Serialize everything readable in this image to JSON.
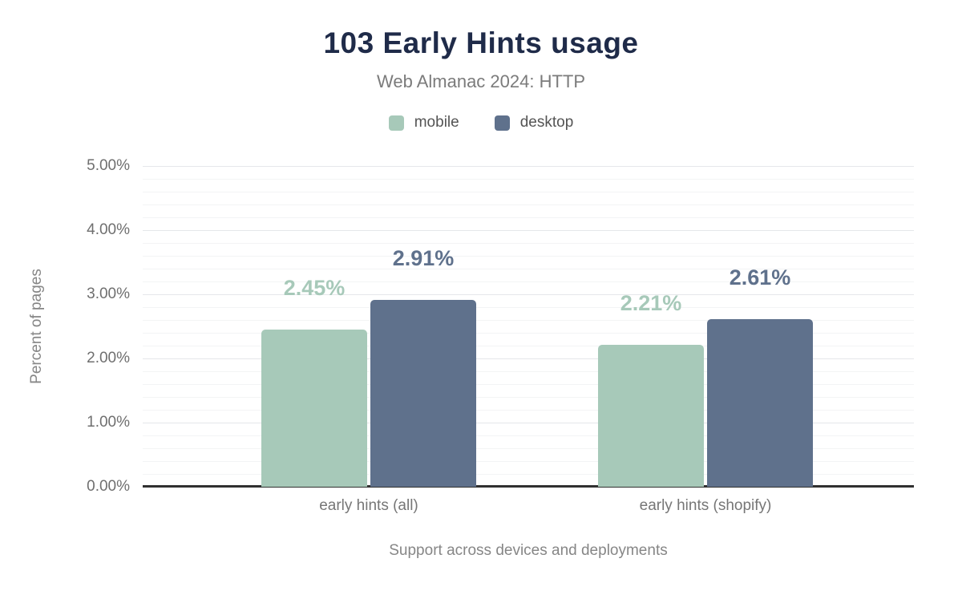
{
  "chart_data": {
    "type": "bar",
    "title": "103 Early Hints usage",
    "subtitle": "Web Almanac 2024: HTTP",
    "categories": [
      "early hints (all)",
      "early hints (shopify)"
    ],
    "series": [
      {
        "name": "mobile",
        "color": "#a7c9b9",
        "values": [
          2.45,
          2.21
        ],
        "data_labels": [
          "2.45%",
          "2.21%"
        ]
      },
      {
        "name": "desktop",
        "color": "#5f718c",
        "values": [
          2.91,
          2.61
        ],
        "data_labels": [
          "2.91%",
          "2.61%"
        ]
      }
    ],
    "xlabel": "Support across devices and deployments",
    "ylabel": "Percent of pages",
    "ylim": [
      0,
      5
    ],
    "ytick_step": 1,
    "minor_gridline_step": 0.2,
    "ytick_labels": [
      "0.00%",
      "1.00%",
      "2.00%",
      "3.00%",
      "4.00%",
      "5.00%"
    ],
    "grid": true,
    "legend_position": "top"
  },
  "colors": {
    "background": "#ffffff",
    "title": "#1f2b49",
    "subtitle": "#7b7b7b",
    "legend_text": "#545454",
    "axis_tick_text": "#6f6f6f",
    "category_text": "#767676",
    "axis_title_text": "#868686",
    "axis_line": "#303030",
    "gridline_major": "#e5e7ea",
    "gridline_minor": "#f3f4f5"
  }
}
